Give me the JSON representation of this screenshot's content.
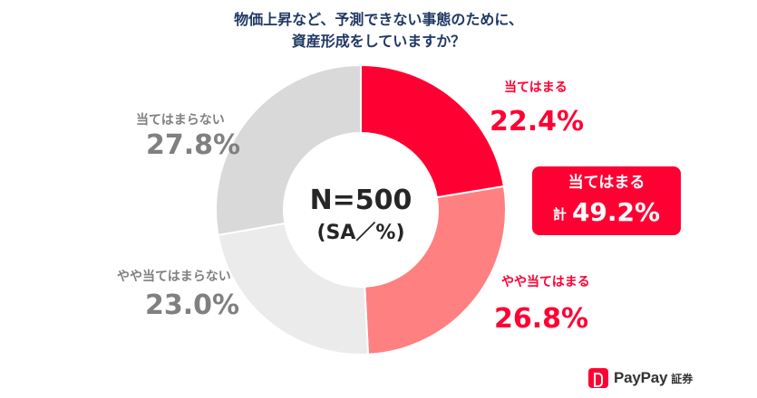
{
  "title_lines": [
    "物価上昇など、予測できない事態のために、",
    "資産形成をしていますか？"
  ],
  "center": {
    "n_label": "N=500",
    "sa_label": "(SA／%)"
  },
  "summary": {
    "label": "当てはまる",
    "prefix": "計",
    "value": "49.2%"
  },
  "logo": {
    "brand": "PayPay",
    "sub": "証券"
  },
  "colors": {
    "title": "#1f3864",
    "accent_red": "#ff0033",
    "label_gray": "#808080"
  },
  "chart_data": {
    "type": "pie",
    "donut": true,
    "start": "12 o'clock, clockwise",
    "title": "物価上昇など、予測できない事態のために、資産形成をしていますか？",
    "categories": [
      "当てはまる",
      "やや当てはまる",
      "やや当てはまらない",
      "当てはまらない"
    ],
    "values": [
      22.4,
      26.8,
      23.0,
      27.8
    ],
    "value_labels": [
      "22.4%",
      "26.8%",
      "23.0%",
      "27.8%"
    ],
    "colors": [
      "#ff0033",
      "#ff8080",
      "#ebebeb",
      "#d9d9d9"
    ]
  }
}
